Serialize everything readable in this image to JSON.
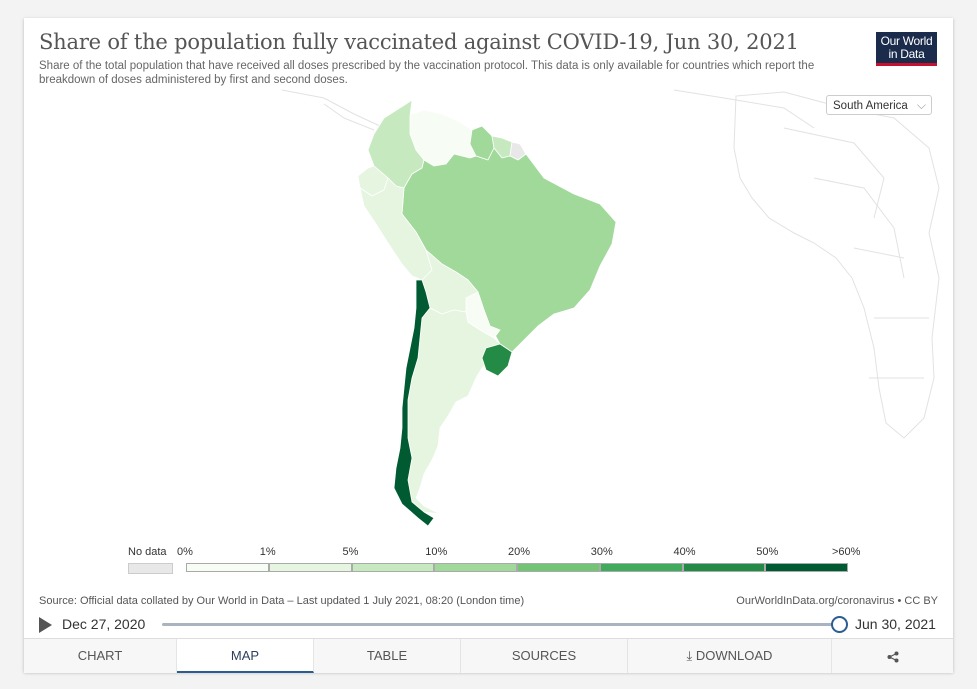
{
  "header": {
    "title": "Share of the population fully vaccinated against COVID-19, Jun 30, 2021",
    "subtitle": "Share of the total population that have received all doses prescribed by the vaccination protocol. This data is only available for countries which report the breakdown of doses administered by first and second doses.",
    "logo_line1": "Our World",
    "logo_line2": "in Data"
  },
  "region_selector": {
    "value": "South America"
  },
  "legend": {
    "no_data_label": "No data",
    "bins": [
      "0%",
      "1%",
      "5%",
      "10%",
      "20%",
      "30%",
      "40%",
      "50%",
      ">60%"
    ],
    "colors": [
      "#f7fcf5",
      "#e5f5e0",
      "#c7e9c0",
      "#a1d99b",
      "#74c476",
      "#41ab5d",
      "#238b45",
      "#005a32"
    ],
    "no_data_color": "#e8e8e8"
  },
  "countries": [
    {
      "name": "Colombia",
      "bin": 2
    },
    {
      "name": "Venezuela",
      "bin": 0
    },
    {
      "name": "Guyana",
      "bin": 3
    },
    {
      "name": "Suriname",
      "bin": 2
    },
    {
      "name": "French Guiana",
      "bin": "no-data"
    },
    {
      "name": "Ecuador",
      "bin": 1
    },
    {
      "name": "Peru",
      "bin": 1
    },
    {
      "name": "Brazil",
      "bin": 3
    },
    {
      "name": "Bolivia",
      "bin": 1
    },
    {
      "name": "Paraguay",
      "bin": 0
    },
    {
      "name": "Chile",
      "bin": 7
    },
    {
      "name": "Argentina",
      "bin": 1
    },
    {
      "name": "Uruguay",
      "bin": 6
    }
  ],
  "footer": {
    "source": "Source: Official data collated by Our World in Data – Last updated 1 July 2021, 08:20 (London time)",
    "credit": "OurWorldInData.org/coronavirus • CC BY"
  },
  "timeline": {
    "start": "Dec 27, 2020",
    "end": "Jun 30, 2021",
    "position": 1.0
  },
  "tabs": [
    {
      "label": "CHART",
      "active": false
    },
    {
      "label": "MAP",
      "active": true
    },
    {
      "label": "TABLE",
      "active": false
    },
    {
      "label": "SOURCES",
      "active": false
    },
    {
      "label": "⤓ DOWNLOAD",
      "active": false
    },
    {
      "label": "share",
      "active": false
    }
  ]
}
